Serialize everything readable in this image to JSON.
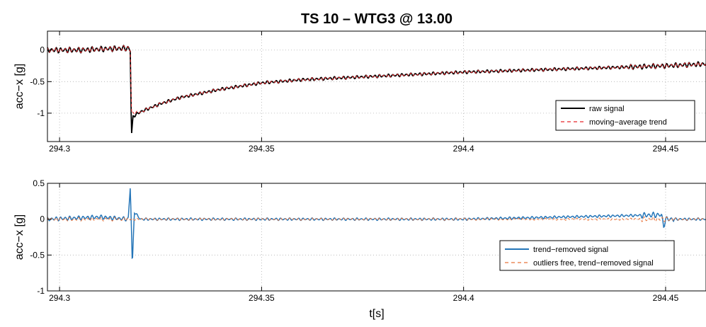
{
  "chart_data": [
    {
      "type": "line",
      "title": "TS 10 – WTG3 @ 13.00",
      "ylabel": "acc−x [g]",
      "xlabel": "",
      "xlim": [
        294.297,
        294.46
      ],
      "ylim": [
        -1.45,
        0.3
      ],
      "xticks": [
        294.3,
        294.35,
        294.4,
        294.45
      ],
      "xtick_labels": [
        "294.3",
        "294.35",
        "294.4",
        "294.45"
      ],
      "yticks": [
        0,
        -0.5,
        -1
      ],
      "ytick_labels": [
        "0",
        "-0.5",
        "-1"
      ],
      "grid": true,
      "legend_position": "lower-right",
      "series": [
        {
          "name": "raw signal",
          "color": "#000000",
          "style": "solid",
          "x": [
            294.297,
            294.305,
            294.312,
            294.317,
            294.3175,
            294.3178,
            294.3182,
            294.32,
            294.325,
            294.33,
            294.34,
            294.35,
            294.36,
            294.37,
            294.38,
            294.39,
            294.4,
            294.41,
            294.42,
            294.43,
            294.44,
            294.45,
            294.46
          ],
          "y": [
            0.0,
            0.0,
            0.02,
            0.03,
            0.0,
            -1.35,
            -1.05,
            -0.98,
            -0.85,
            -0.75,
            -0.62,
            -0.52,
            -0.47,
            -0.44,
            -0.41,
            -0.38,
            -0.35,
            -0.33,
            -0.31,
            -0.29,
            -0.27,
            -0.25,
            -0.22
          ]
        },
        {
          "name": "moving−average trend",
          "color": "#e8262a",
          "style": "dashed",
          "x": [
            294.297,
            294.305,
            294.312,
            294.317,
            294.3175,
            294.3178,
            294.3182,
            294.32,
            294.325,
            294.33,
            294.34,
            294.35,
            294.36,
            294.37,
            294.38,
            294.39,
            294.4,
            294.41,
            294.42,
            294.43,
            294.44,
            294.45,
            294.46
          ],
          "y": [
            0.0,
            0.0,
            0.02,
            0.03,
            0.0,
            -1.0,
            -1.0,
            -0.98,
            -0.85,
            -0.75,
            -0.62,
            -0.52,
            -0.47,
            -0.44,
            -0.41,
            -0.38,
            -0.35,
            -0.33,
            -0.31,
            -0.29,
            -0.27,
            -0.25,
            -0.22
          ]
        }
      ]
    },
    {
      "type": "line",
      "title": "",
      "ylabel": "acc−x [g]",
      "xlabel": "t[s]",
      "xlim": [
        294.297,
        294.46
      ],
      "ylim": [
        -1,
        0.5
      ],
      "xticks": [
        294.3,
        294.35,
        294.4,
        294.45
      ],
      "xtick_labels": [
        "294.3",
        "294.35",
        "294.4",
        "294.45"
      ],
      "yticks": [
        0.5,
        0,
        -0.5,
        -1
      ],
      "ytick_labels": [
        "0.5",
        "0",
        "-0.5",
        "-1"
      ],
      "grid": true,
      "legend_position": "lower-right",
      "series": [
        {
          "name": "trend−removed signal",
          "color": "#2475b8",
          "style": "solid",
          "x": [
            294.297,
            294.31,
            294.317,
            294.3175,
            294.3178,
            294.318,
            294.3185,
            294.32,
            294.35,
            294.4,
            294.449,
            294.4495,
            294.45,
            294.46
          ],
          "y": [
            0.0,
            0.03,
            0.0,
            0.45,
            -0.15,
            -0.66,
            0.1,
            0.0,
            0.0,
            0.0,
            0.06,
            -0.1,
            0.0,
            0.0
          ]
        },
        {
          "name": "outliers free, trend−removed signal",
          "color": "#e8733a",
          "style": "dashed",
          "x": [
            294.297,
            294.46
          ],
          "y": [
            0.0,
            0.0
          ]
        }
      ]
    }
  ]
}
